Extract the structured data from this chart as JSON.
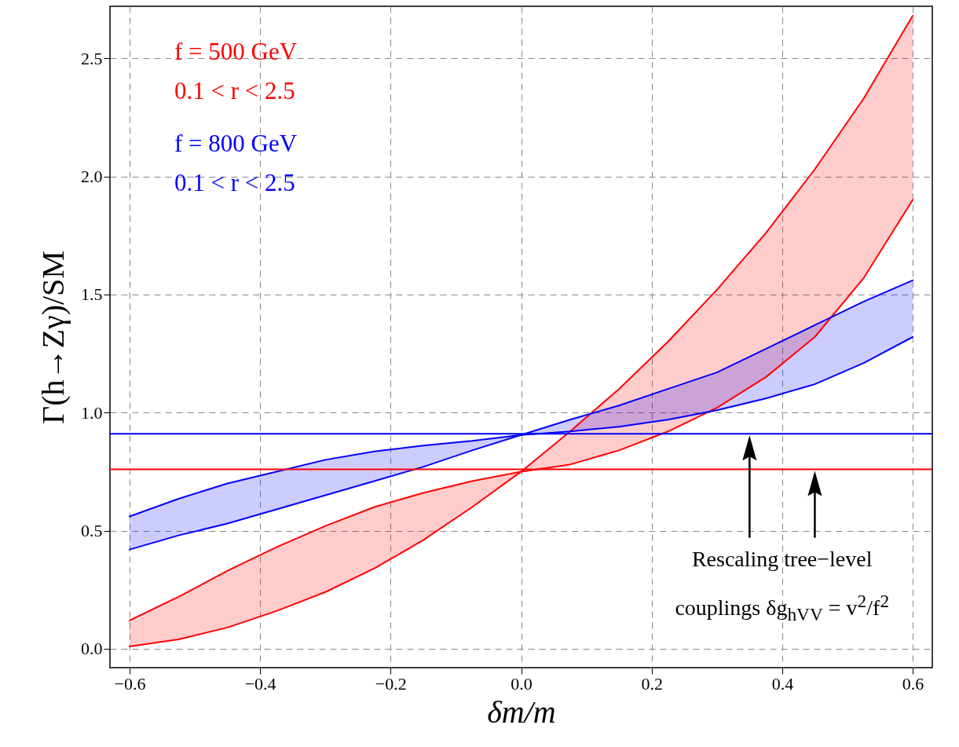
{
  "chart_data": {
    "type": "line",
    "xlabel": "δm/m",
    "ylabel": "Γ(h→Zγ)/SM",
    "x": [
      -0.6,
      -0.525,
      -0.45,
      -0.375,
      -0.3,
      -0.225,
      -0.15,
      -0.075,
      0,
      0.075,
      0.15,
      0.225,
      0.3,
      0.375,
      0.45,
      0.525,
      0.6
    ],
    "series": [
      {
        "name": "f = 500 GeV\n0.1 < r < 2.5",
        "color": "#ff0000",
        "values": [
          0.12,
          0.22,
          0.33,
          0.43,
          0.52,
          0.6,
          0.66,
          0.71,
          0.75,
          0.78,
          0.84,
          0.92,
          1.02,
          1.15,
          1.32,
          1.57,
          1.9
        ],
        "lower": [
          0.01,
          0.04,
          0.09,
          0.16,
          0.24,
          0.34,
          0.46,
          0.6,
          0.75,
          0.78,
          0.84,
          0.92,
          1.02,
          1.15,
          1.32,
          1.57,
          1.9
        ],
        "upper": [
          0.12,
          0.22,
          0.33,
          0.43,
          0.52,
          0.6,
          0.66,
          0.71,
          0.75,
          0.92,
          1.1,
          1.3,
          1.52,
          1.76,
          2.03,
          2.33,
          2.68
        ]
      },
      {
        "color": "#ff0000",
        "values": [
          0.01,
          0.04,
          0.09,
          0.16,
          0.24,
          0.34,
          0.46,
          0.6,
          0.75,
          0.92,
          1.1,
          1.3,
          1.52,
          1.76,
          2.03,
          2.33,
          2.68
        ]
      },
      {
        "name": "f = 800 GeV\n0.1 < r < 2.5",
        "color": "#0000ff",
        "values": [
          0.56,
          0.635,
          0.7,
          0.75,
          0.8,
          0.835,
          0.86,
          0.88,
          0.905,
          0.92,
          0.94,
          0.97,
          1.01,
          1.06,
          1.12,
          1.21,
          1.32
        ],
        "lower": [
          0.42,
          0.48,
          0.53,
          0.59,
          0.65,
          0.71,
          0.77,
          0.84,
          0.905,
          0.92,
          0.94,
          0.97,
          1.01,
          1.06,
          1.12,
          1.21,
          1.32
        ],
        "upper": [
          0.56,
          0.635,
          0.7,
          0.75,
          0.8,
          0.835,
          0.86,
          0.88,
          0.905,
          0.97,
          1.03,
          1.1,
          1.17,
          1.27,
          1.37,
          1.47,
          1.56
        ]
      },
      {
        "color": "#0000ff",
        "values": [
          0.42,
          0.48,
          0.53,
          0.59,
          0.65,
          0.71,
          0.77,
          0.84,
          0.905,
          0.97,
          1.03,
          1.1,
          1.17,
          1.27,
          1.37,
          1.47,
          1.56
        ]
      }
    ],
    "ref_lines": [
      {
        "axis": "y",
        "value": 0.91,
        "color": "#0000ff"
      },
      {
        "axis": "y",
        "value": 0.76,
        "color": "#ff0000"
      }
    ],
    "annotations": [
      "Rescaling tree−level",
      "couplings δg$_{hVV}$ = v$^{2}$/f$^{2}$"
    ],
    "xlim": [
      -0.63,
      0.63
    ],
    "ylim": [
      -0.08,
      2.72
    ],
    "xticks": [
      {
        "value": -0.6,
        "label": "−0.6"
      },
      {
        "value": -0.4,
        "label": "−0.4"
      },
      {
        "value": -0.2,
        "label": "−0.2"
      },
      {
        "value": 0,
        "label": "0.0"
      },
      {
        "value": 0.2,
        "label": "0.2"
      },
      {
        "value": 0.4,
        "label": "0.4"
      },
      {
        "value": 0.6,
        "label": "0.6"
      }
    ],
    "yticks": [
      {
        "value": 0,
        "label": "0.0"
      },
      {
        "value": 0.5,
        "label": "0.5"
      },
      {
        "value": 1,
        "label": "1.0"
      },
      {
        "value": 1.5,
        "label": "1.5"
      },
      {
        "value": 2,
        "label": "2.0"
      },
      {
        "value": 2.5,
        "label": "2.5"
      }
    ],
    "grid": true,
    "legend": "top left"
  }
}
